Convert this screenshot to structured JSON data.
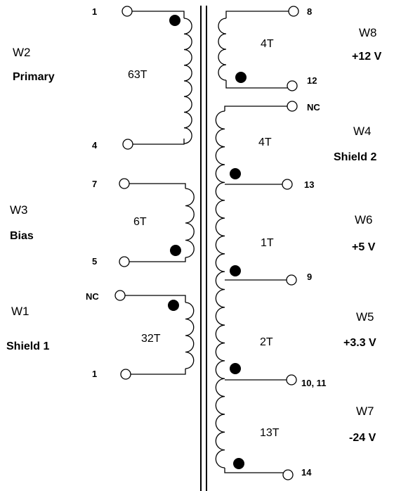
{
  "primary_side": {
    "w2": {
      "name": "W2",
      "desc": "Primary",
      "turns": "63T",
      "pin_top": "1",
      "pin_bottom": "4"
    },
    "w3": {
      "name": "W3",
      "desc": "Bias",
      "turns": "6T",
      "pin_top": "7",
      "pin_bottom": "5"
    },
    "w1": {
      "name": "W1",
      "desc": "Shield 1",
      "turns": "32T",
      "pin_top": "NC",
      "pin_bottom": "1"
    }
  },
  "secondary_side": {
    "w8": {
      "name": "W8",
      "desc": "+12 V",
      "turns": "4T",
      "pin_top": "8",
      "pin_bottom": "12"
    },
    "w4": {
      "name": "W4",
      "desc": "Shield 2",
      "turns": "4T",
      "pin_top": "NC",
      "pin_bottom": "13"
    },
    "w6": {
      "name": "W6",
      "desc": "+5 V",
      "turns": "1T",
      "pin_bottom": "9"
    },
    "w5": {
      "name": "W5",
      "desc": "+3.3 V",
      "turns": "2T",
      "pin_bottom": "10, 11"
    },
    "w7": {
      "name": "W7",
      "desc": "-24 V",
      "turns": "13T",
      "pin_bottom": "14"
    }
  }
}
